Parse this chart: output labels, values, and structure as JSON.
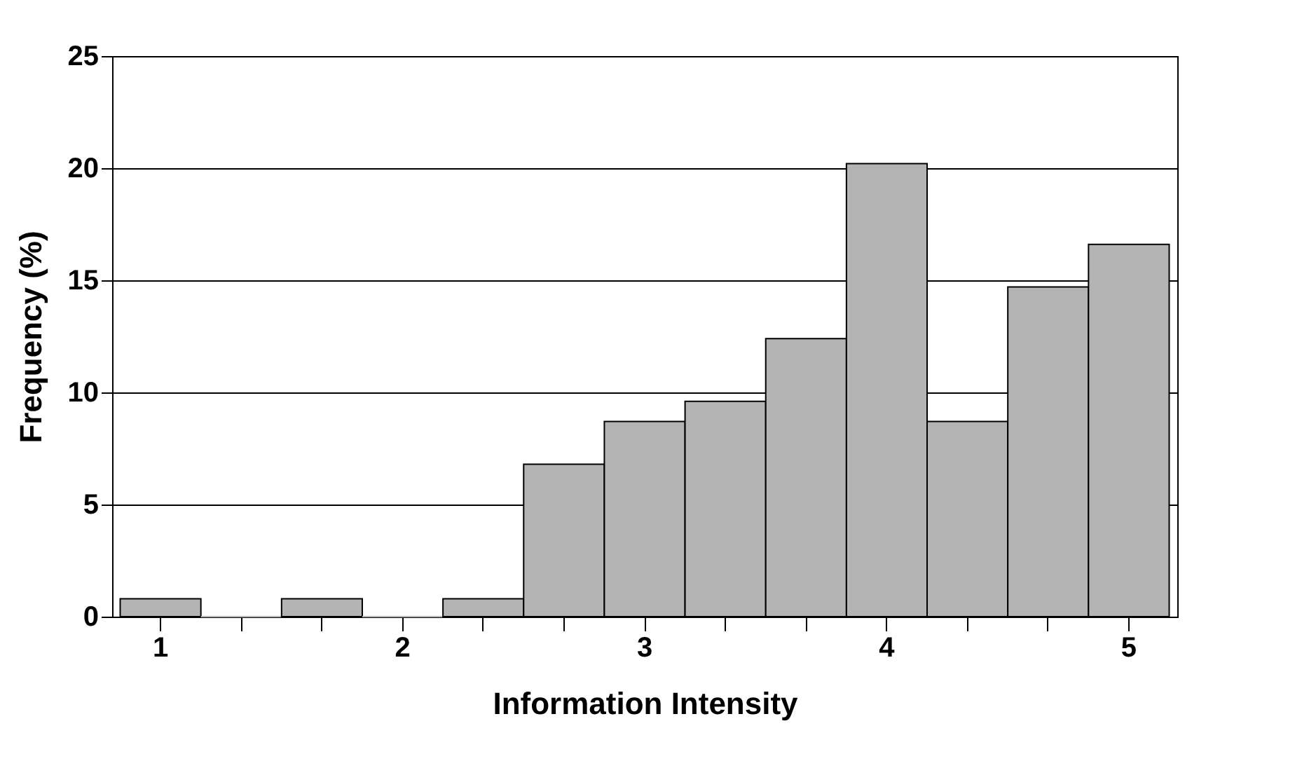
{
  "chart_data": {
    "type": "bar",
    "xlabel": "Information Intensity",
    "ylabel": "Frequency (%)",
    "categories": [
      "1",
      null,
      null,
      "2",
      null,
      null,
      "3",
      null,
      null,
      "4",
      null,
      null,
      "5"
    ],
    "values": [
      0.8,
      0,
      0.8,
      0,
      0.8,
      6.8,
      8.7,
      9.6,
      12.4,
      20.2,
      8.7,
      14.7,
      16.6
    ],
    "color": "#b4b4b4",
    "ylim": [
      0,
      25
    ],
    "yticks": [
      0,
      5,
      10,
      15,
      20,
      25
    ],
    "grid": "y"
  }
}
